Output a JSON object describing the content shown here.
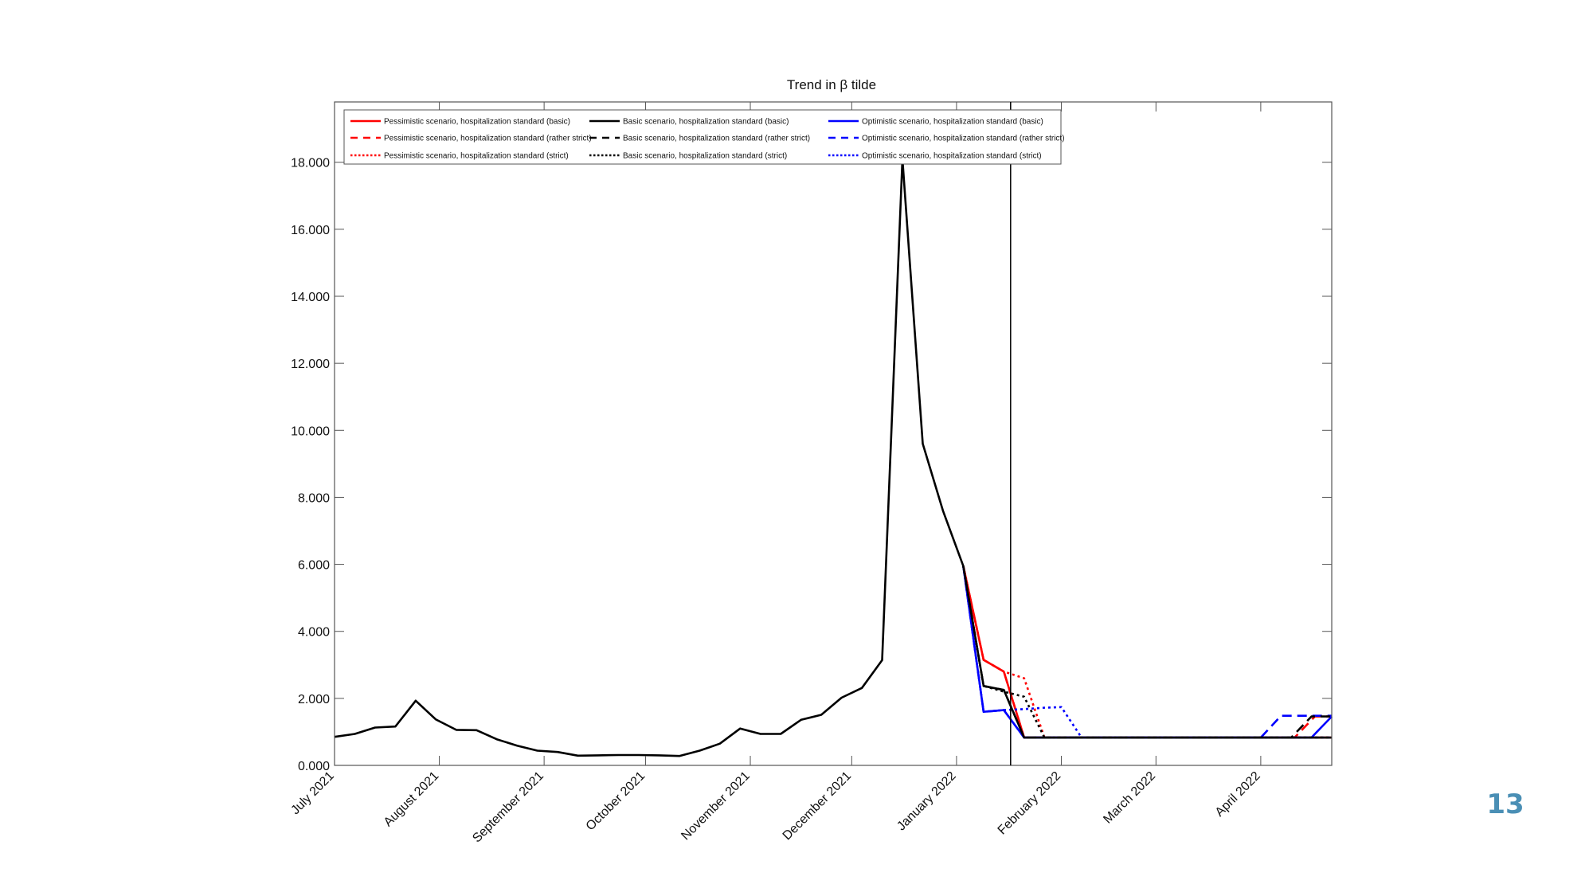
{
  "page_number": "13",
  "chart_data": {
    "type": "line",
    "title": "Trend in β tilde",
    "xlabel": "",
    "ylabel": "",
    "ylim": [
      0,
      19.8
    ],
    "xlim": [
      "2021-07-01",
      "2022-04-22"
    ],
    "grid": false,
    "legend_position": "top-left",
    "event_line_date": "2022-01-17",
    "yticks": [
      {
        "value": 0,
        "label": "0.000"
      },
      {
        "value": 2,
        "label": "2.000"
      },
      {
        "value": 4,
        "label": "4.000"
      },
      {
        "value": 6,
        "label": "6.000"
      },
      {
        "value": 8,
        "label": "8.000"
      },
      {
        "value": 10,
        "label": "10.000"
      },
      {
        "value": 12,
        "label": "12.000"
      },
      {
        "value": 14,
        "label": "14.000"
      },
      {
        "value": 16,
        "label": "16.000"
      },
      {
        "value": 18,
        "label": "18.000"
      }
    ],
    "xticks": [
      {
        "date": "2021-07-01",
        "label": "July 2021"
      },
      {
        "date": "2021-08-01",
        "label": "August 2021"
      },
      {
        "date": "2021-09-01",
        "label": "September 2021"
      },
      {
        "date": "2021-10-01",
        "label": "October 2021"
      },
      {
        "date": "2021-11-01",
        "label": "November 2021"
      },
      {
        "date": "2021-12-01",
        "label": "December 2021"
      },
      {
        "date": "2022-01-01",
        "label": "January 2022"
      },
      {
        "date": "2022-02-01",
        "label": "February 2022"
      },
      {
        "date": "2022-03-01",
        "label": "March 2022"
      },
      {
        "date": "2022-04-01",
        "label": "April 2022"
      }
    ],
    "series": [
      {
        "name": "Basic scenario, hospitalization standard (basic)",
        "color": "#000000",
        "dash": "solid",
        "points": [
          [
            "2021-07-01",
            0.85
          ],
          [
            "2021-07-07",
            0.94
          ],
          [
            "2021-07-13",
            1.13
          ],
          [
            "2021-07-19",
            1.16
          ],
          [
            "2021-07-25",
            1.93
          ],
          [
            "2021-07-31",
            1.37
          ],
          [
            "2021-08-06",
            1.06
          ],
          [
            "2021-08-12",
            1.05
          ],
          [
            "2021-08-18",
            0.78
          ],
          [
            "2021-08-24",
            0.59
          ],
          [
            "2021-08-30",
            0.44
          ],
          [
            "2021-09-05",
            0.4
          ],
          [
            "2021-09-11",
            0.29
          ],
          [
            "2021-09-17",
            0.3
          ],
          [
            "2021-09-23",
            0.31
          ],
          [
            "2021-09-29",
            0.31
          ],
          [
            "2021-10-05",
            0.3
          ],
          [
            "2021-10-11",
            0.28
          ],
          [
            "2021-10-17",
            0.44
          ],
          [
            "2021-10-23",
            0.65
          ],
          [
            "2021-10-29",
            1.1
          ],
          [
            "2021-11-04",
            0.94
          ],
          [
            "2021-11-10",
            0.94
          ],
          [
            "2021-11-16",
            1.36
          ],
          [
            "2021-11-22",
            1.51
          ],
          [
            "2021-11-28",
            2.02
          ],
          [
            "2021-12-04",
            2.31
          ],
          [
            "2021-12-10",
            3.14
          ],
          [
            "2021-12-16",
            18.1
          ],
          [
            "2021-12-22",
            9.6
          ],
          [
            "2021-12-28",
            7.6
          ],
          [
            "2022-01-03",
            5.95
          ],
          [
            "2022-01-09",
            2.37
          ],
          [
            "2022-01-15",
            2.25
          ],
          [
            "2022-01-21",
            0.83
          ],
          [
            "2022-04-22",
            0.83
          ]
        ]
      },
      {
        "name": "Basic scenario, hospitalization standard (rather strict)",
        "color": "#000000",
        "dash": "dashed",
        "points": [
          [
            "2022-01-03",
            5.95
          ],
          [
            "2022-01-09",
            2.37
          ],
          [
            "2022-01-15",
            2.25
          ],
          [
            "2022-01-21",
            0.83
          ],
          [
            "2022-04-10",
            0.83
          ],
          [
            "2022-04-16",
            1.46
          ],
          [
            "2022-04-22",
            1.46
          ]
        ]
      },
      {
        "name": "Basic scenario, hospitalization standard (strict)",
        "color": "#000000",
        "dash": "dotted",
        "points": [
          [
            "2022-01-03",
            5.95
          ],
          [
            "2022-01-09",
            2.37
          ],
          [
            "2022-01-15",
            2.2
          ],
          [
            "2022-01-21",
            2.05
          ],
          [
            "2022-01-27",
            0.83
          ],
          [
            "2022-04-22",
            0.83
          ]
        ]
      },
      {
        "name": "Pessimistic scenario, hospitalization standard (basic)",
        "color": "#ff0000",
        "dash": "solid",
        "points": [
          [
            "2022-01-03",
            5.95
          ],
          [
            "2022-01-09",
            3.15
          ],
          [
            "2022-01-15",
            2.8
          ],
          [
            "2022-01-21",
            0.83
          ],
          [
            "2022-04-22",
            0.83
          ]
        ]
      },
      {
        "name": "Pessimistic scenario, hospitalization standard (rather strict)",
        "color": "#ff0000",
        "dash": "dashed",
        "points": [
          [
            "2022-01-03",
            5.95
          ],
          [
            "2022-01-09",
            3.15
          ],
          [
            "2022-01-15",
            2.8
          ],
          [
            "2022-01-21",
            0.83
          ],
          [
            "2022-04-11",
            0.83
          ],
          [
            "2022-04-17",
            1.46
          ],
          [
            "2022-04-22",
            1.46
          ]
        ]
      },
      {
        "name": "Pessimistic scenario, hospitalization standard (strict)",
        "color": "#ff0000",
        "dash": "dotted",
        "points": [
          [
            "2022-01-03",
            5.95
          ],
          [
            "2022-01-09",
            3.15
          ],
          [
            "2022-01-15",
            2.8
          ],
          [
            "2022-01-21",
            2.6
          ],
          [
            "2022-01-27",
            0.83
          ],
          [
            "2022-04-22",
            0.83
          ]
        ]
      },
      {
        "name": "Optimistic scenario, hospitalization standard (basic)",
        "color": "#0000ff",
        "dash": "solid",
        "points": [
          [
            "2022-01-03",
            5.95
          ],
          [
            "2022-01-09",
            1.6
          ],
          [
            "2022-01-15",
            1.65
          ],
          [
            "2022-01-21",
            0.83
          ],
          [
            "2022-04-16",
            0.83
          ],
          [
            "2022-04-22",
            1.46
          ]
        ]
      },
      {
        "name": "Optimistic scenario, hospitalization standard (rather strict)",
        "color": "#0000ff",
        "dash": "dashed",
        "points": [
          [
            "2022-01-03",
            5.95
          ],
          [
            "2022-01-09",
            1.6
          ],
          [
            "2022-01-15",
            1.65
          ],
          [
            "2022-01-21",
            0.83
          ],
          [
            "2022-04-01",
            0.83
          ],
          [
            "2022-04-07",
            1.48
          ],
          [
            "2022-04-22",
            1.48
          ]
        ]
      },
      {
        "name": "Optimistic scenario, hospitalization standard (strict)",
        "color": "#0000ff",
        "dash": "dotted",
        "points": [
          [
            "2022-01-03",
            5.95
          ],
          [
            "2022-01-09",
            1.6
          ],
          [
            "2022-01-15",
            1.65
          ],
          [
            "2022-01-21",
            1.68
          ],
          [
            "2022-01-27",
            1.72
          ],
          [
            "2022-02-01",
            1.74
          ],
          [
            "2022-02-07",
            0.83
          ],
          [
            "2022-04-22",
            0.83
          ]
        ]
      }
    ],
    "legend_columns": [
      [
        "Pessimistic scenario, hospitalization standard (basic)",
        "Pessimistic scenario, hospitalization standard (rather strict)",
        "Pessimistic scenario, hospitalization standard (strict)"
      ],
      [
        "Basic scenario, hospitalization standard (basic)",
        "Basic scenario, hospitalization standard (rather strict)",
        "Basic scenario, hospitalization standard (strict)"
      ],
      [
        "Optimistic scenario, hospitalization standard (basic)",
        "Optimistic scenario, hospitalization standard (rather strict)",
        "Optimistic scenario, hospitalization standard (strict)"
      ]
    ]
  }
}
